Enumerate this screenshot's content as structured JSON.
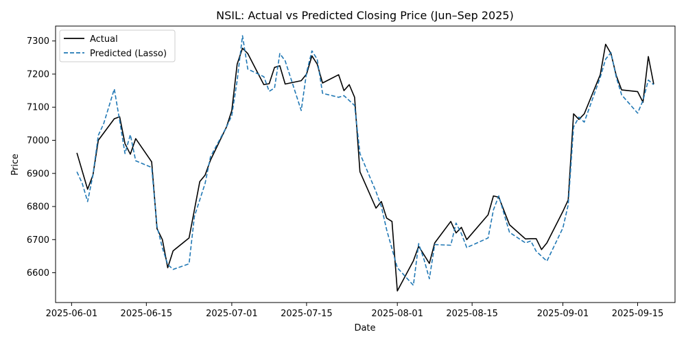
{
  "chart_data": {
    "type": "line",
    "title": "NSIL: Actual vs Predicted Closing Price (Jun–Sep 2025)",
    "xlabel": "Date",
    "ylabel": "Price",
    "xlim": [
      "2025-05-29",
      "2025-09-22"
    ],
    "ylim": [
      6510,
      7345
    ],
    "x_ticks": [
      "2025-06-01",
      "2025-06-15",
      "2025-07-01",
      "2025-07-15",
      "2025-08-01",
      "2025-08-15",
      "2025-09-01",
      "2025-09-15"
    ],
    "y_ticks": [
      6600,
      6700,
      6800,
      6900,
      7000,
      7100,
      7200,
      7300
    ],
    "grid": false,
    "legend_position": "top-left",
    "series": [
      {
        "name": "Actual",
        "color": "#000000",
        "style": "solid",
        "points": [
          [
            "2025-06-02",
            6962
          ],
          [
            "2025-06-04",
            6852
          ],
          [
            "2025-06-05",
            6895
          ],
          [
            "2025-06-06",
            7000
          ],
          [
            "2025-06-09",
            7065
          ],
          [
            "2025-06-10",
            7071
          ],
          [
            "2025-06-11",
            6990
          ],
          [
            "2025-06-12",
            6958
          ],
          [
            "2025-06-13",
            7005
          ],
          [
            "2025-06-16",
            6935
          ],
          [
            "2025-06-17",
            6733
          ],
          [
            "2025-06-18",
            6700
          ],
          [
            "2025-06-19",
            6615
          ],
          [
            "2025-06-20",
            6666
          ],
          [
            "2025-06-23",
            6705
          ],
          [
            "2025-06-24",
            6790
          ],
          [
            "2025-06-25",
            6875
          ],
          [
            "2025-06-26",
            6895
          ],
          [
            "2025-06-27",
            6940
          ],
          [
            "2025-06-30",
            7040
          ],
          [
            "2025-07-01",
            7090
          ],
          [
            "2025-07-02",
            7230
          ],
          [
            "2025-07-03",
            7278
          ],
          [
            "2025-07-04",
            7262
          ],
          [
            "2025-07-07",
            7168
          ],
          [
            "2025-07-08",
            7171
          ],
          [
            "2025-07-09",
            7220
          ],
          [
            "2025-07-10",
            7225
          ],
          [
            "2025-07-11",
            7170
          ],
          [
            "2025-07-14",
            7180
          ],
          [
            "2025-07-15",
            7200
          ],
          [
            "2025-07-16",
            7255
          ],
          [
            "2025-07-17",
            7230
          ],
          [
            "2025-07-18",
            7173
          ],
          [
            "2025-07-21",
            7198
          ],
          [
            "2025-07-22",
            7150
          ],
          [
            "2025-07-23",
            7168
          ],
          [
            "2025-07-24",
            7130
          ],
          [
            "2025-07-25",
            6905
          ],
          [
            "2025-07-28",
            6795
          ],
          [
            "2025-07-29",
            6815
          ],
          [
            "2025-07-30",
            6765
          ],
          [
            "2025-07-31",
            6755
          ],
          [
            "2025-08-01",
            6545
          ],
          [
            "2025-08-04",
            6636
          ],
          [
            "2025-08-05",
            6680
          ],
          [
            "2025-08-07",
            6628
          ],
          [
            "2025-08-08",
            6690
          ],
          [
            "2025-08-11",
            6755
          ],
          [
            "2025-08-12",
            6720
          ],
          [
            "2025-08-13",
            6737
          ],
          [
            "2025-08-14",
            6700
          ],
          [
            "2025-08-18",
            6775
          ],
          [
            "2025-08-19",
            6832
          ],
          [
            "2025-08-20",
            6828
          ],
          [
            "2025-08-22",
            6745
          ],
          [
            "2025-08-25",
            6702
          ],
          [
            "2025-08-26",
            6703
          ],
          [
            "2025-08-27",
            6703
          ],
          [
            "2025-08-28",
            6670
          ],
          [
            "2025-08-29",
            6690
          ],
          [
            "2025-09-01",
            6785
          ],
          [
            "2025-09-02",
            6820
          ],
          [
            "2025-09-03",
            7080
          ],
          [
            "2025-09-04",
            7063
          ],
          [
            "2025-09-05",
            7080
          ],
          [
            "2025-09-08",
            7198
          ],
          [
            "2025-09-09",
            7290
          ],
          [
            "2025-09-10",
            7262
          ],
          [
            "2025-09-11",
            7195
          ],
          [
            "2025-09-12",
            7152
          ],
          [
            "2025-09-15",
            7147
          ],
          [
            "2025-09-16",
            7115
          ],
          [
            "2025-09-17",
            7253
          ],
          [
            "2025-09-18",
            7170
          ]
        ]
      },
      {
        "name": "Predicted (Lasso)",
        "color": "#1f77b4",
        "style": "dashed",
        "points": [
          [
            "2025-06-02",
            6905
          ],
          [
            "2025-06-03",
            6870
          ],
          [
            "2025-06-04",
            6815
          ],
          [
            "2025-06-05",
            6895
          ],
          [
            "2025-06-06",
            7015
          ],
          [
            "2025-06-07",
            7050
          ],
          [
            "2025-06-09",
            7155
          ],
          [
            "2025-06-10",
            7060
          ],
          [
            "2025-06-11",
            6960
          ],
          [
            "2025-06-12",
            7017
          ],
          [
            "2025-06-13",
            6938
          ],
          [
            "2025-06-16",
            6918
          ],
          [
            "2025-06-17",
            6740
          ],
          [
            "2025-06-18",
            6675
          ],
          [
            "2025-06-19",
            6625
          ],
          [
            "2025-06-20",
            6610
          ],
          [
            "2025-06-23",
            6627
          ],
          [
            "2025-06-24",
            6770
          ],
          [
            "2025-06-25",
            6820
          ],
          [
            "2025-06-26",
            6870
          ],
          [
            "2025-06-27",
            6950
          ],
          [
            "2025-06-30",
            7040
          ],
          [
            "2025-07-01",
            7075
          ],
          [
            "2025-07-02",
            7180
          ],
          [
            "2025-07-03",
            7316
          ],
          [
            "2025-07-04",
            7215
          ],
          [
            "2025-07-07",
            7192
          ],
          [
            "2025-07-08",
            7148
          ],
          [
            "2025-07-09",
            7158
          ],
          [
            "2025-07-10",
            7262
          ],
          [
            "2025-07-11",
            7240
          ],
          [
            "2025-07-14",
            7090
          ],
          [
            "2025-07-15",
            7205
          ],
          [
            "2025-07-16",
            7270
          ],
          [
            "2025-07-17",
            7245
          ],
          [
            "2025-07-18",
            7142
          ],
          [
            "2025-07-21",
            7130
          ],
          [
            "2025-07-22",
            7135
          ],
          [
            "2025-07-24",
            7105
          ],
          [
            "2025-07-25",
            6960
          ],
          [
            "2025-07-28",
            6845
          ],
          [
            "2025-07-29",
            6800
          ],
          [
            "2025-07-30",
            6730
          ],
          [
            "2025-08-01",
            6615
          ],
          [
            "2025-08-04",
            6562
          ],
          [
            "2025-08-05",
            6688
          ],
          [
            "2025-08-06",
            6640
          ],
          [
            "2025-08-07",
            6582
          ],
          [
            "2025-08-08",
            6685
          ],
          [
            "2025-08-11",
            6683
          ],
          [
            "2025-08-12",
            6750
          ],
          [
            "2025-08-13",
            6718
          ],
          [
            "2025-08-14",
            6676
          ],
          [
            "2025-08-18",
            6705
          ],
          [
            "2025-08-19",
            6790
          ],
          [
            "2025-08-20",
            6832
          ],
          [
            "2025-08-22",
            6722
          ],
          [
            "2025-08-25",
            6690
          ],
          [
            "2025-08-26",
            6696
          ],
          [
            "2025-08-27",
            6665
          ],
          [
            "2025-08-29",
            6635
          ],
          [
            "2025-09-01",
            6735
          ],
          [
            "2025-09-02",
            6805
          ],
          [
            "2025-09-03",
            7040
          ],
          [
            "2025-09-04",
            7070
          ],
          [
            "2025-09-05",
            7055
          ],
          [
            "2025-09-08",
            7190
          ],
          [
            "2025-09-09",
            7245
          ],
          [
            "2025-09-10",
            7265
          ],
          [
            "2025-09-11",
            7190
          ],
          [
            "2025-09-12",
            7137
          ],
          [
            "2025-09-15",
            7082
          ],
          [
            "2025-09-16",
            7120
          ],
          [
            "2025-09-17",
            7182
          ],
          [
            "2025-09-18",
            7168
          ]
        ]
      }
    ]
  }
}
